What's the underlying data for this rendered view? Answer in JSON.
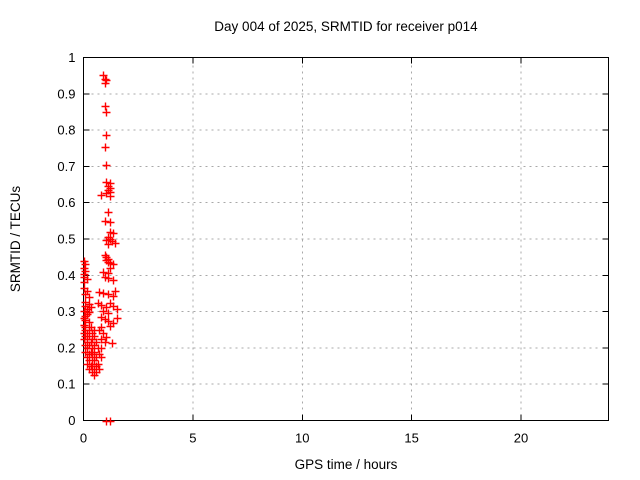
{
  "figure": {
    "title": "Day 004 of 2025, SRMTID for receiver p014",
    "xlabel": "GPS time / hours",
    "ylabel": "SRMTID / TECUs"
  },
  "chart_data": {
    "type": "scatter",
    "title": "Day 004 of 2025, SRMTID for receiver p014",
    "xlabel": "GPS time / hours",
    "ylabel": "SRMTID / TECUs",
    "xlim": [
      0,
      24
    ],
    "ylim": [
      0,
      1
    ],
    "xticks": [
      {
        "value": 0,
        "label": "0"
      },
      {
        "value": 5,
        "label": "5"
      },
      {
        "value": 10,
        "label": "10"
      },
      {
        "value": 15,
        "label": "15"
      },
      {
        "value": 20,
        "label": "20"
      }
    ],
    "yticks": [
      {
        "value": 0,
        "label": "0"
      },
      {
        "value": 0.1,
        "label": "0.1"
      },
      {
        "value": 0.2,
        "label": "0.2"
      },
      {
        "value": 0.3,
        "label": "0.3"
      },
      {
        "value": 0.4,
        "label": "0.4"
      },
      {
        "value": 0.5,
        "label": "0.5"
      },
      {
        "value": 0.6,
        "label": "0.6"
      },
      {
        "value": 0.7,
        "label": "0.7"
      },
      {
        "value": 0.8,
        "label": "0.8"
      },
      {
        "value": 0.9,
        "label": "0.9"
      },
      {
        "value": 1,
        "label": "1"
      }
    ],
    "grid": "dashed",
    "grid_color": "#a8a8a8",
    "border_color": "#000000",
    "marker": "plus",
    "marker_color": "#ff0000",
    "legend": "none",
    "series": [
      {
        "name": "SRMTID",
        "points": [
          [
            0.91,
            0.953
          ],
          [
            0.96,
            0.942
          ],
          [
            1.01,
            0.939
          ],
          [
            0.96,
            0.931
          ],
          [
            0.96,
            0.867
          ],
          [
            1.05,
            0.851
          ],
          [
            1.01,
            0.787
          ],
          [
            0.96,
            0.754
          ],
          [
            1.05,
            0.704
          ],
          [
            1.05,
            0.657
          ],
          [
            1.19,
            0.655
          ],
          [
            1.14,
            0.646
          ],
          [
            1.23,
            0.641
          ],
          [
            1.1,
            0.635
          ],
          [
            1.19,
            0.63
          ],
          [
            1.05,
            0.627
          ],
          [
            0.82,
            0.622
          ],
          [
            1.23,
            0.619
          ],
          [
            1.1,
            0.575
          ],
          [
            0.96,
            0.55
          ],
          [
            1.23,
            0.547
          ],
          [
            1.19,
            0.519
          ],
          [
            1.37,
            0.517
          ],
          [
            1.1,
            0.505
          ],
          [
            1.23,
            0.5
          ],
          [
            1.05,
            0.497
          ],
          [
            1.32,
            0.494
          ],
          [
            1.42,
            0.49
          ],
          [
            1.14,
            0.486
          ],
          [
            0.96,
            0.456
          ],
          [
            1.05,
            0.45
          ],
          [
            1.1,
            0.445
          ],
          [
            1.01,
            0.442
          ],
          [
            1.14,
            0.437
          ],
          [
            1.23,
            0.434
          ],
          [
            1.37,
            0.431
          ],
          [
            1.19,
            0.42
          ],
          [
            1.14,
            0.407
          ],
          [
            0.91,
            0.409
          ],
          [
            1.1,
            0.392
          ],
          [
            1.33,
            0.387
          ],
          [
            0.96,
            0.395
          ],
          [
            0.02,
            0.439
          ],
          [
            0.05,
            0.431
          ],
          [
            0.02,
            0.42
          ],
          [
            0.05,
            0.412
          ],
          [
            0.0,
            0.403
          ],
          [
            0.0,
            0.395
          ],
          [
            0.14,
            0.39
          ],
          [
            0.0,
            0.381
          ],
          [
            0.0,
            0.365
          ],
          [
            0.14,
            0.356
          ],
          [
            0.05,
            0.348
          ],
          [
            0.23,
            0.34
          ],
          [
            0.69,
            0.354
          ],
          [
            0.87,
            0.351
          ],
          [
            1.14,
            0.348
          ],
          [
            1.33,
            0.343
          ],
          [
            1.46,
            0.356
          ],
          [
            0.05,
            0.326
          ],
          [
            0.23,
            0.32
          ],
          [
            0.09,
            0.315
          ],
          [
            0.32,
            0.312
          ],
          [
            0.14,
            0.307
          ],
          [
            0.0,
            0.301
          ],
          [
            0.27,
            0.298
          ],
          [
            0.18,
            0.293
          ],
          [
            0.05,
            0.287
          ],
          [
            0.64,
            0.323
          ],
          [
            0.82,
            0.318
          ],
          [
            1.01,
            0.312
          ],
          [
            1.19,
            0.323
          ],
          [
            1.37,
            0.315
          ],
          [
            1.51,
            0.307
          ],
          [
            0.91,
            0.301
          ],
          [
            1.1,
            0.296
          ],
          [
            0.0,
            0.282
          ],
          [
            0.09,
            0.276
          ],
          [
            0.27,
            0.271
          ],
          [
            0.0,
            0.262
          ],
          [
            0.78,
            0.285
          ],
          [
            0.96,
            0.279
          ],
          [
            1.14,
            0.273
          ],
          [
            1.33,
            0.268
          ],
          [
            1.51,
            0.282
          ],
          [
            1.23,
            0.26
          ],
          [
            0.09,
            0.257
          ],
          [
            0.32,
            0.257
          ],
          [
            0.82,
            0.257
          ],
          [
            0.05,
            0.249
          ],
          [
            0.23,
            0.249
          ],
          [
            0.46,
            0.249
          ],
          [
            0.73,
            0.249
          ],
          [
            0.0,
            0.24
          ],
          [
            0.14,
            0.24
          ],
          [
            0.37,
            0.24
          ],
          [
            0.91,
            0.24
          ],
          [
            0.05,
            0.232
          ],
          [
            0.27,
            0.232
          ],
          [
            0.5,
            0.232
          ],
          [
            1.01,
            0.229
          ],
          [
            0.0,
            0.224
          ],
          [
            0.18,
            0.224
          ],
          [
            0.41,
            0.224
          ],
          [
            0.78,
            0.224
          ],
          [
            0.14,
            0.215
          ],
          [
            0.32,
            0.215
          ],
          [
            0.55,
            0.215
          ],
          [
            0.96,
            0.215
          ],
          [
            1.3,
            0.213
          ],
          [
            0.05,
            0.207
          ],
          [
            0.27,
            0.207
          ],
          [
            0.46,
            0.207
          ],
          [
            0.14,
            0.199
          ],
          [
            0.37,
            0.199
          ],
          [
            0.64,
            0.199
          ],
          [
            0.82,
            0.199
          ],
          [
            0.09,
            0.19
          ],
          [
            0.32,
            0.19
          ],
          [
            0.5,
            0.19
          ],
          [
            0.23,
            0.182
          ],
          [
            0.41,
            0.182
          ],
          [
            0.69,
            0.182
          ],
          [
            0.14,
            0.174
          ],
          [
            0.37,
            0.174
          ],
          [
            0.55,
            0.174
          ],
          [
            0.78,
            0.174
          ],
          [
            0.27,
            0.166
          ],
          [
            0.46,
            0.166
          ],
          [
            0.18,
            0.157
          ],
          [
            0.41,
            0.157
          ],
          [
            0.64,
            0.157
          ],
          [
            0.32,
            0.149
          ],
          [
            0.55,
            0.149
          ],
          [
            0.23,
            0.141
          ],
          [
            0.46,
            0.141
          ],
          [
            0.73,
            0.141
          ],
          [
            0.37,
            0.133
          ],
          [
            0.59,
            0.133
          ],
          [
            0.5,
            0.124
          ],
          [
            1.05,
            0.0
          ],
          [
            1.19,
            0.0
          ]
        ]
      }
    ]
  }
}
